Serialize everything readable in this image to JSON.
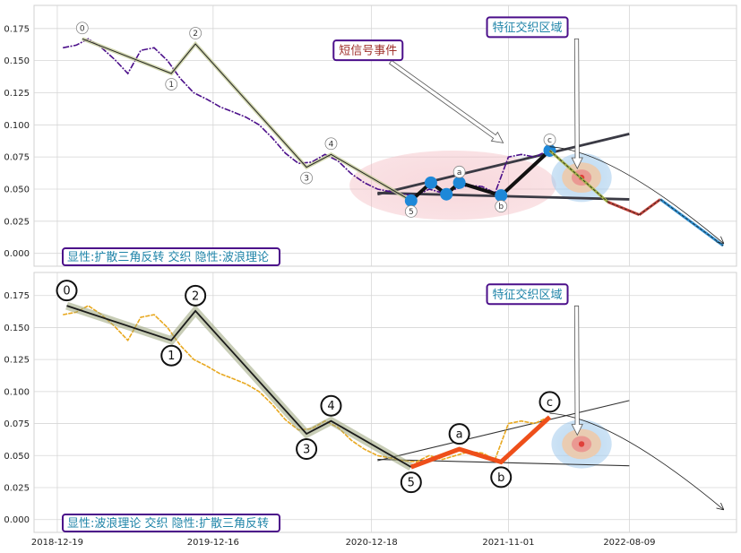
{
  "chart_data": [
    {
      "type": "line",
      "title": "",
      "xlabel": "",
      "ylabel": "",
      "x_ticks": [
        "2018-12-19",
        "2019-12-16",
        "2020-12-18",
        "2021-11-01",
        "2022-08-09"
      ],
      "x_range": [
        "2018-10-26",
        "2023-04-15"
      ],
      "y_ticks": [
        "0.000",
        "0.025",
        "0.050",
        "0.075",
        "0.100",
        "0.125",
        "0.150",
        "0.175"
      ],
      "ylim": [
        -0.01,
        0.193
      ],
      "grid": true,
      "price_color": "#4b0f8a",
      "price_series": [
        [
          "2019-01-01",
          0.16
        ],
        [
          "2019-02-01",
          0.162
        ],
        [
          "2019-03-01",
          0.167
        ],
        [
          "2019-04-01",
          0.16
        ],
        [
          "2019-05-01",
          0.151
        ],
        [
          "2019-06-01",
          0.14
        ],
        [
          "2019-07-01",
          0.158
        ],
        [
          "2019-08-01",
          0.16
        ],
        [
          "2019-09-01",
          0.15
        ],
        [
          "2019-10-01",
          0.136
        ],
        [
          "2019-11-01",
          0.125
        ],
        [
          "2019-12-01",
          0.12
        ],
        [
          "2020-01-01",
          0.114
        ],
        [
          "2020-02-01",
          0.11
        ],
        [
          "2020-03-01",
          0.106
        ],
        [
          "2020-04-01",
          0.1
        ],
        [
          "2020-05-01",
          0.09
        ],
        [
          "2020-06-01",
          0.078
        ],
        [
          "2020-07-01",
          0.07
        ],
        [
          "2020-08-01",
          0.071
        ],
        [
          "2020-09-01",
          0.077
        ],
        [
          "2020-10-01",
          0.072
        ],
        [
          "2020-11-01",
          0.062
        ],
        [
          "2020-12-01",
          0.055
        ],
        [
          "2021-01-01",
          0.05
        ],
        [
          "2021-02-01",
          0.048
        ],
        [
          "2021-03-01",
          0.046
        ],
        [
          "2021-04-01",
          0.045
        ],
        [
          "2021-05-01",
          0.05
        ],
        [
          "2021-06-01",
          0.047
        ],
        [
          "2021-07-01",
          0.05
        ],
        [
          "2021-08-01",
          0.053
        ],
        [
          "2021-09-01",
          0.052
        ],
        [
          "2021-10-01",
          0.047
        ],
        [
          "2021-11-01",
          0.075
        ],
        [
          "2021-12-01",
          0.077
        ],
        [
          "2022-01-01",
          0.075
        ],
        [
          "2022-02-01",
          0.08
        ]
      ],
      "wave_labels": [
        {
          "label": "0",
          "date": "2019-02-15",
          "value": 0.167,
          "pos": "above"
        },
        {
          "label": "1",
          "date": "2019-09-10",
          "value": 0.14,
          "pos": "below"
        },
        {
          "label": "2",
          "date": "2019-11-05",
          "value": 0.163,
          "pos": "above"
        },
        {
          "label": "3",
          "date": "2020-07-20",
          "value": 0.067,
          "pos": "below"
        },
        {
          "label": "4",
          "date": "2020-09-15",
          "value": 0.077,
          "pos": "above"
        },
        {
          "label": "5",
          "date": "2021-03-20",
          "value": 0.041,
          "pos": "below"
        },
        {
          "label": "a",
          "date": "2021-07-10",
          "value": 0.055,
          "pos": "above"
        },
        {
          "label": "b",
          "date": "2021-10-15",
          "value": 0.045,
          "pos": "below"
        },
        {
          "label": "c",
          "date": "2022-02-05",
          "value": 0.08,
          "pos": "above"
        }
      ],
      "impulse_wave": [
        [
          "2019-02-15",
          0.167
        ],
        [
          "2019-09-10",
          0.14
        ],
        [
          "2019-11-05",
          0.163
        ],
        [
          "2020-07-20",
          0.067
        ],
        [
          "2020-09-15",
          0.077
        ],
        [
          "2021-03-20",
          0.041
        ]
      ],
      "triangle_wave": [
        [
          "2021-03-20",
          0.041
        ],
        [
          "2021-05-05",
          0.055
        ],
        [
          "2021-06-10",
          0.046
        ],
        [
          "2021-07-10",
          0.055
        ],
        [
          "2021-10-15",
          0.045
        ],
        [
          "2022-02-05",
          0.08
        ]
      ],
      "triangle_upper": [
        [
          "2021-01-01",
          0.046
        ],
        [
          "2022-08-09",
          0.093
        ]
      ],
      "triangle_lower": [
        [
          "2021-01-01",
          0.047
        ],
        [
          "2022-08-09",
          0.042
        ]
      ],
      "forecast": [
        [
          "2022-02-05",
          0.08
        ],
        [
          "2022-06-20",
          0.04
        ],
        [
          "2022-09-01",
          0.03
        ],
        [
          "2022-10-20",
          0.042
        ],
        [
          "2023-03-15",
          0.006
        ]
      ],
      "forecast_arc": [
        [
          "2022-02-05",
          0.083
        ],
        [
          "2022-07-01",
          0.08
        ],
        [
          "2023-03-15",
          0.008
        ]
      ],
      "target_ellipse": {
        "center": [
          "2022-04-20",
          0.059
        ],
        "spread_days": 70,
        "spread_value": 0.019
      },
      "short_signal_ellipse": {
        "center": [
          "2021-06-25",
          0.053
        ],
        "spread_days": 240,
        "spread_value": 0.027
      },
      "legend_box": "显性:扩散三角反转 交织 隐性:波浪理论",
      "annotations": [
        {
          "text": "短信号事件",
          "color": "#a0322d",
          "anchor": [
            "2020-12-10",
            0.158
          ],
          "arrow_to": [
            "2021-10-20",
            0.086
          ]
        },
        {
          "text": "特征交织区域",
          "color": "#1f84a8",
          "anchor": [
            "2021-12-15",
            0.176
          ],
          "arrow_to": [
            "2022-04-10",
            0.066
          ]
        }
      ]
    },
    {
      "type": "line",
      "title": "",
      "xlabel": "",
      "ylabel": "",
      "x_ticks": [
        "2018-12-19",
        "2019-12-16",
        "2020-12-18",
        "2021-11-01",
        "2022-08-09"
      ],
      "x_range": [
        "2018-10-26",
        "2023-04-15"
      ],
      "y_ticks": [
        "0.000",
        "0.025",
        "0.050",
        "0.075",
        "0.100",
        "0.125",
        "0.150",
        "0.175"
      ],
      "ylim": [
        -0.01,
        0.193
      ],
      "grid": true,
      "price_color": "#e8a81f",
      "price_series": [
        [
          "2019-01-01",
          0.16
        ],
        [
          "2019-02-01",
          0.162
        ],
        [
          "2019-03-01",
          0.167
        ],
        [
          "2019-04-01",
          0.16
        ],
        [
          "2019-05-01",
          0.151
        ],
        [
          "2019-06-01",
          0.14
        ],
        [
          "2019-07-01",
          0.158
        ],
        [
          "2019-08-01",
          0.16
        ],
        [
          "2019-09-01",
          0.15
        ],
        [
          "2019-10-01",
          0.136
        ],
        [
          "2019-11-01",
          0.125
        ],
        [
          "2019-12-01",
          0.12
        ],
        [
          "2020-01-01",
          0.114
        ],
        [
          "2020-02-01",
          0.11
        ],
        [
          "2020-03-01",
          0.106
        ],
        [
          "2020-04-01",
          0.1
        ],
        [
          "2020-05-01",
          0.09
        ],
        [
          "2020-06-01",
          0.078
        ],
        [
          "2020-07-01",
          0.07
        ],
        [
          "2020-08-01",
          0.071
        ],
        [
          "2020-09-01",
          0.077
        ],
        [
          "2020-10-01",
          0.072
        ],
        [
          "2020-11-01",
          0.062
        ],
        [
          "2020-12-01",
          0.055
        ],
        [
          "2021-01-01",
          0.05
        ],
        [
          "2021-02-01",
          0.048
        ],
        [
          "2021-03-01",
          0.046
        ],
        [
          "2021-04-01",
          0.045
        ],
        [
          "2021-05-01",
          0.05
        ],
        [
          "2021-06-01",
          0.047
        ],
        [
          "2021-07-01",
          0.05
        ],
        [
          "2021-08-01",
          0.053
        ],
        [
          "2021-09-01",
          0.052
        ],
        [
          "2021-10-01",
          0.047
        ],
        [
          "2021-11-01",
          0.075
        ],
        [
          "2021-12-01",
          0.077
        ],
        [
          "2022-01-01",
          0.075
        ],
        [
          "2022-02-01",
          0.08
        ]
      ],
      "wave_labels": [
        {
          "label": "0",
          "date": "2019-01-10",
          "value": 0.167,
          "pos": "above"
        },
        {
          "label": "1",
          "date": "2019-09-10",
          "value": 0.14,
          "pos": "below"
        },
        {
          "label": "2",
          "date": "2019-11-05",
          "value": 0.163,
          "pos": "above"
        },
        {
          "label": "3",
          "date": "2020-07-20",
          "value": 0.067,
          "pos": "below"
        },
        {
          "label": "4",
          "date": "2020-09-15",
          "value": 0.077,
          "pos": "above"
        },
        {
          "label": "5",
          "date": "2021-03-20",
          "value": 0.041,
          "pos": "below"
        },
        {
          "label": "a",
          "date": "2021-07-10",
          "value": 0.055,
          "pos": "above"
        },
        {
          "label": "b",
          "date": "2021-10-15",
          "value": 0.045,
          "pos": "below"
        },
        {
          "label": "c",
          "date": "2022-02-05",
          "value": 0.08,
          "pos": "above"
        }
      ],
      "impulse_wave": [
        [
          "2019-01-10",
          0.167
        ],
        [
          "2019-09-10",
          0.14
        ],
        [
          "2019-11-05",
          0.163
        ],
        [
          "2020-07-20",
          0.067
        ],
        [
          "2020-09-15",
          0.077
        ],
        [
          "2021-03-20",
          0.041
        ]
      ],
      "corrective_wave": [
        [
          "2021-03-20",
          0.041
        ],
        [
          "2021-07-10",
          0.055
        ],
        [
          "2021-10-15",
          0.045
        ],
        [
          "2022-02-05",
          0.08
        ]
      ],
      "triangle_upper": [
        [
          "2021-01-01",
          0.046
        ],
        [
          "2022-08-09",
          0.093
        ]
      ],
      "triangle_lower": [
        [
          "2021-01-01",
          0.047
        ],
        [
          "2022-08-09",
          0.042
        ]
      ],
      "forecast_arc": [
        [
          "2022-02-05",
          0.083
        ],
        [
          "2022-07-01",
          0.08
        ],
        [
          "2023-03-15",
          0.008
        ]
      ],
      "target_ellipse": {
        "center": [
          "2022-04-20",
          0.059
        ],
        "spread_days": 70,
        "spread_value": 0.019
      },
      "legend_box": "显性:波浪理论 交织 隐性:扩散三角反转",
      "annotations": [
        {
          "text": "特征交织区域",
          "color": "#1f84a8",
          "anchor": [
            "2021-12-15",
            0.176
          ],
          "arrow_to": [
            "2022-04-10",
            0.066
          ]
        }
      ]
    }
  ]
}
